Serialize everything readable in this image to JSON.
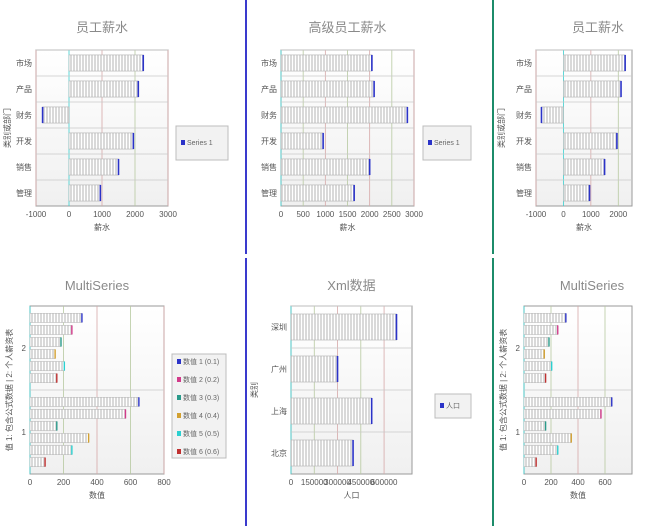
{
  "chart_data": [
    {
      "type": "bar",
      "title": "员工薪水",
      "ylabel": "类别或部门",
      "xlabel": "薪水",
      "categories": [
        "管理",
        "销售",
        "开发",
        "财务",
        "产品",
        "市场"
      ],
      "xlim": [
        -1000,
        3000
      ],
      "xticks": [
        "-1000",
        "0",
        "1000",
        "2000",
        "3000"
      ],
      "grid": true,
      "legend": "right",
      "series": [
        {
          "name": "Series 1",
          "values": [
            950,
            1500,
            1950,
            -800,
            2100,
            2250
          ]
        }
      ]
    },
    {
      "type": "bar",
      "title": "高级员工薪水",
      "ylabel": "",
      "xlabel": "薪水",
      "categories": [
        "管理",
        "销售",
        "开发",
        "财务",
        "产品",
        "市场"
      ],
      "xlim": [
        0,
        3000
      ],
      "xticks": [
        "0",
        "500",
        "1000",
        "1500",
        "2000",
        "2500",
        "3000"
      ],
      "grid": true,
      "legend": "right",
      "series": [
        {
          "name": "Series 1",
          "values": [
            1650,
            2000,
            950,
            2850,
            2100,
            2050
          ]
        }
      ]
    },
    {
      "type": "bar",
      "title": "员工薪水",
      "ylabel": "类别或部门",
      "xlabel": "薪水",
      "categories": [
        "管理",
        "销售",
        "开发",
        "财务",
        "产品",
        "市场"
      ],
      "xlim": [
        -1000,
        2500
      ],
      "xticks": [
        "-1000",
        "0",
        "1000",
        "2000"
      ],
      "grid": true,
      "legend": "none",
      "series": [
        {
          "name": "Series 1",
          "values": [
            950,
            1500,
            1950,
            -800,
            2100,
            2250
          ]
        }
      ]
    },
    {
      "type": "bar",
      "title": "MultiSeries",
      "ylabel": "值 1: 包含公式数据 | 2: 个人薪资表",
      "xlabel": "数值",
      "categories": [
        "1",
        "2"
      ],
      "xlim": [
        0,
        800
      ],
      "xticks": [
        "0",
        "200",
        "400",
        "600",
        "800"
      ],
      "grid": true,
      "legend": "right",
      "series": [
        {
          "name": "数值 1 (0.1)",
          "values": [
            650,
            310
          ]
        },
        {
          "name": "数值 2 (0.2)",
          "values": [
            570,
            250
          ]
        },
        {
          "name": "数值 3 (0.3)",
          "values": [
            160,
            185
          ]
        },
        {
          "name": "数值 4 (0.4)",
          "values": [
            350,
            150
          ]
        },
        {
          "name": "数值 5 (0.5)",
          "values": [
            250,
            205
          ]
        },
        {
          "name": "数值 6 (0.6)",
          "values": [
            90,
            160
          ]
        }
      ]
    },
    {
      "type": "bar",
      "title": "Xml数据",
      "ylabel": "类别",
      "xlabel": "人口",
      "categories": [
        "北京",
        "上海",
        "广州",
        "深圳"
      ],
      "xlim": [
        0,
        780000
      ],
      "xticks": [
        "0",
        "150000",
        "300000",
        "450000",
        "600000"
      ],
      "grid": true,
      "legend": "right",
      "series": [
        {
          "name": "人口",
          "values": [
            400000,
            520000,
            300000,
            680000
          ]
        }
      ]
    },
    {
      "type": "bar",
      "title": "MultiSeries",
      "ylabel": "值 1: 包含公式数据 | 2: 个人薪资表",
      "xlabel": "数值",
      "categories": [
        "1",
        "2"
      ],
      "xlim": [
        0,
        800
      ],
      "xticks": [
        "0",
        "200",
        "400",
        "600"
      ],
      "grid": true,
      "legend": "none",
      "series": [
        {
          "name": "数值 1 (0.1)",
          "values": [
            650,
            310
          ]
        },
        {
          "name": "数值 2 (0.2)",
          "values": [
            570,
            250
          ]
        },
        {
          "name": "数值 3 (0.3)",
          "values": [
            160,
            185
          ]
        },
        {
          "name": "数值 4 (0.4)",
          "values": [
            350,
            150
          ]
        },
        {
          "name": "数值 5 (0.5)",
          "values": [
            250,
            205
          ]
        },
        {
          "name": "数值 6 (0.6)",
          "values": [
            90,
            160
          ]
        }
      ]
    }
  ],
  "colors": {
    "bar_fill": "#d9d9d9",
    "bar_stripe": "#ffffff",
    "bar_edge": "#2b33c8",
    "plot_border": "#9a9a9a",
    "grid": "#c8c8c8",
    "divider_blue": "#3a3acd",
    "divider_green": "#1c8c6a",
    "accent_colors": [
      "#2b33c8",
      "#d23a8a",
      "#2a9a8a",
      "#d2a030",
      "#2bd0d0",
      "#c03030"
    ]
  }
}
